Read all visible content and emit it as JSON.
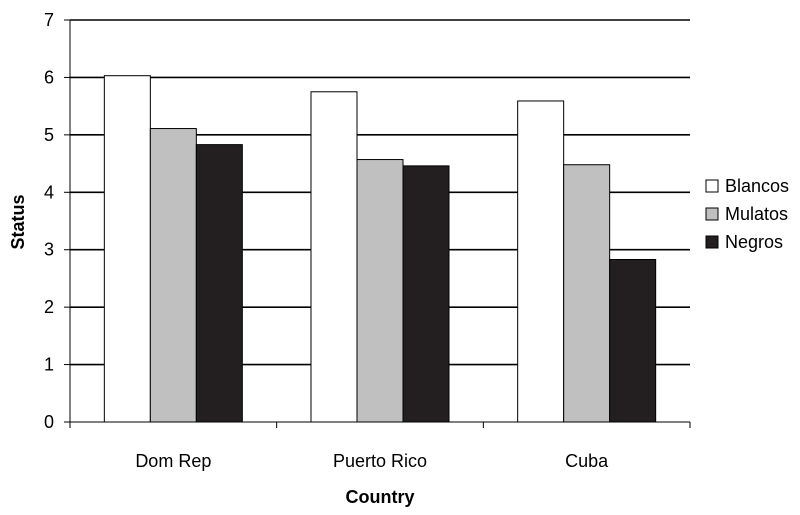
{
  "chart_data": {
    "type": "bar",
    "title": "",
    "xlabel": "Country",
    "ylabel": "Status",
    "categories": [
      "Dom Rep",
      "Puerto Rico",
      "Cuba"
    ],
    "series": [
      {
        "name": "Blancos",
        "values": [
          6.03,
          5.75,
          5.59
        ]
      },
      {
        "name": "Mulatos",
        "values": [
          5.11,
          4.57,
          4.48
        ]
      },
      {
        "name": "Negros",
        "values": [
          4.83,
          4.46,
          2.83
        ]
      }
    ],
    "ylim": [
      0,
      7
    ],
    "yticks": [
      "0",
      "1",
      "2",
      "3",
      "4",
      "5",
      "6",
      "7"
    ],
    "grid": true,
    "legend_position": "right",
    "colors": {
      "Blancos": "#ffffff",
      "Mulatos": "#c0c0c0",
      "Negros": "#231f20"
    }
  }
}
